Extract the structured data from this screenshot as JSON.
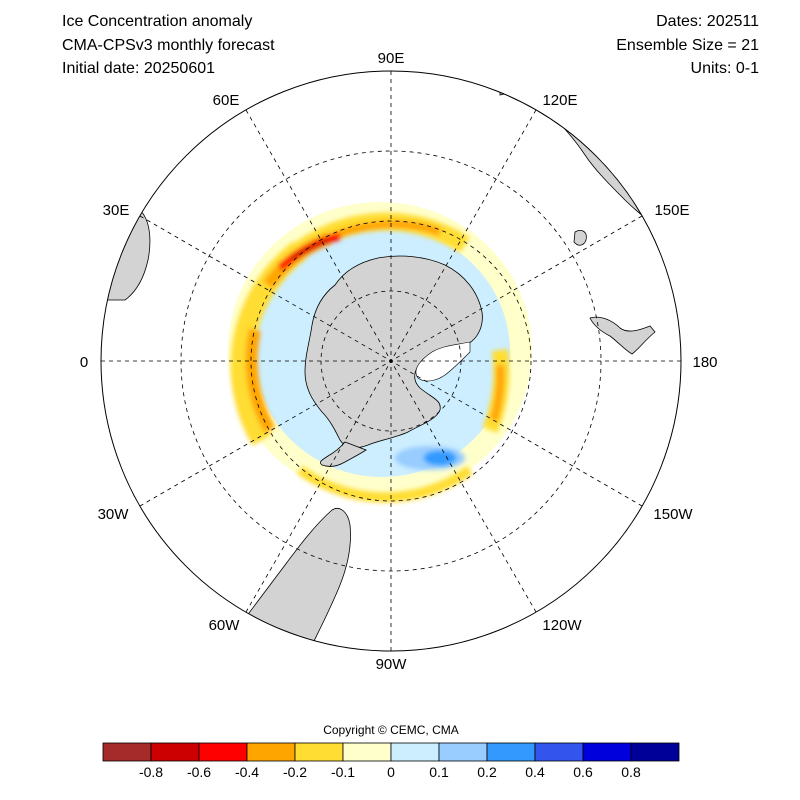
{
  "header": {
    "title": "Ice Concentration anomaly",
    "model": "CMA-CPSv3 monthly forecast",
    "initial": "Initial date: 20250601",
    "dates": "Dates: 202511",
    "ensemble": "Ensemble Size = 21",
    "units": "Units: 0-1"
  },
  "map": {
    "projection": "south-polar-stereographic",
    "lon_labels": [
      "90E",
      "120E",
      "150E",
      "180",
      "150W",
      "120W",
      "90W",
      "60W",
      "30W",
      "0",
      "30E",
      "60E"
    ],
    "colors": {
      "land": "#d3d3d3",
      "coast": "#000000",
      "grid": "#000000"
    }
  },
  "copyright": "Copyright © CEMC, CMA",
  "colorbar": {
    "ticks": [
      "-0.8",
      "-0.6",
      "-0.4",
      "-0.2",
      "-0.1",
      "0",
      "0.1",
      "0.2",
      "0.4",
      "0.6",
      "0.8"
    ],
    "colors": [
      "#a52a2a",
      "#cc0000",
      "#ff0000",
      "#ffa500",
      "#ffdd33",
      "#ffffcc",
      "#cceeff",
      "#99ccff",
      "#3399ff",
      "#3355ee",
      "#0000dd",
      "#000099"
    ]
  }
}
